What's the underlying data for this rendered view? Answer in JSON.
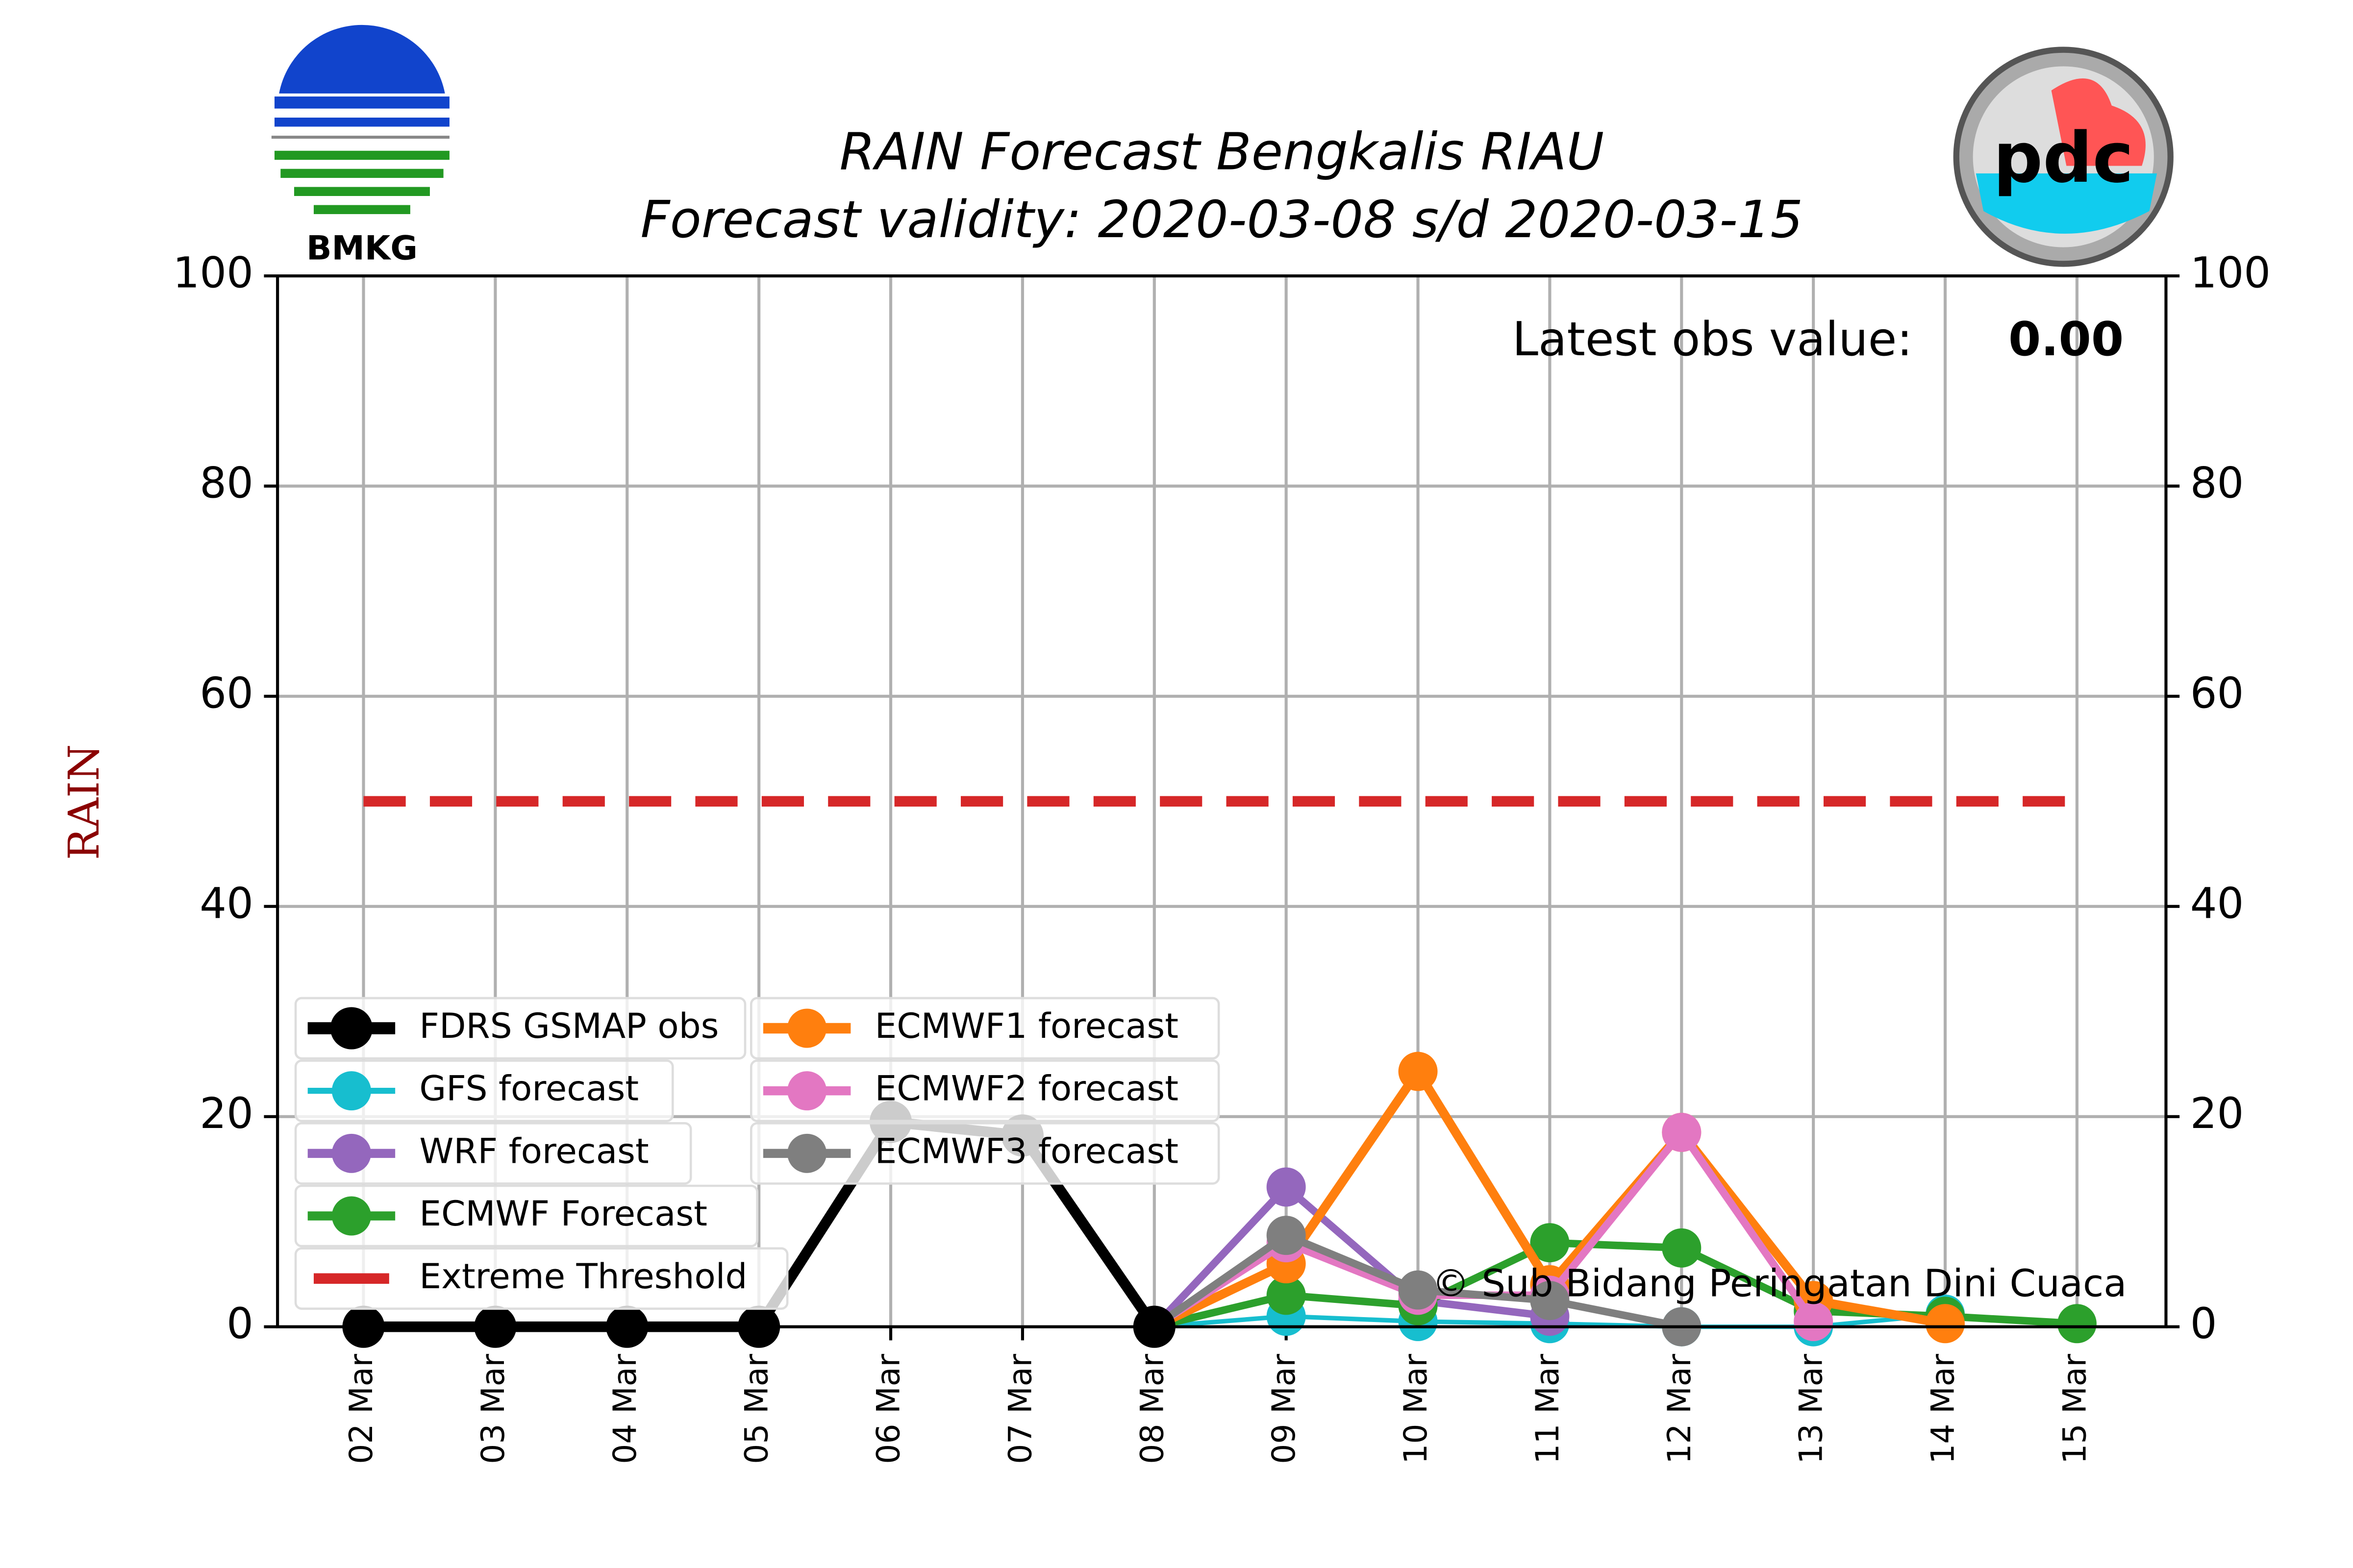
{
  "chart_data": {
    "type": "line",
    "title": "RAIN Forecast Bengkalis RIAU",
    "subtitle": "Forecast validity: 2020-03-08 s/d 2020-03-15",
    "y_label": "RAIN",
    "annotation": "Latest obs value:",
    "annotation_value": "0.00",
    "credit": "© Sub Bidang Peringatan Dini Cuaca",
    "logo_left": "BMKG",
    "categories": [
      "02 Mar",
      "03 Mar",
      "04 Mar",
      "05 Mar",
      "06 Mar",
      "07 Mar",
      "08 Mar",
      "09 Mar",
      "10 Mar",
      "11 Mar",
      "12 Mar",
      "13 Mar",
      "14 Mar",
      "15 Mar"
    ],
    "series": [
      {
        "name": "FDRS GSMAP obs",
        "color": "#000000",
        "values": [
          0,
          0,
          0,
          0,
          19.5,
          18.2,
          0,
          null,
          null,
          null,
          null,
          null,
          null,
          null
        ]
      },
      {
        "name": "GFS forecast",
        "color": "#17becf",
        "values": [
          null,
          null,
          null,
          null,
          null,
          null,
          0,
          1,
          0.5,
          0.3,
          0,
          0,
          1.2,
          null
        ]
      },
      {
        "name": "WRF forecast",
        "color": "#9467bd",
        "values": [
          null,
          null,
          null,
          null,
          null,
          null,
          0,
          13.3,
          2.5,
          1,
          null,
          null,
          null,
          null
        ]
      },
      {
        "name": "ECMWF Forecast",
        "color": "#2ca02c",
        "values": [
          null,
          null,
          null,
          null,
          null,
          null,
          0,
          3,
          2,
          8,
          7.5,
          1.5,
          1,
          0.3
        ]
      },
      {
        "name": "ECMWF1 forecast",
        "color": "#ff7f0e",
        "values": [
          null,
          null,
          null,
          null,
          null,
          null,
          0,
          6,
          24.3,
          4,
          18.5,
          2.5,
          0.3,
          null
        ]
      },
      {
        "name": "ECMWF2 forecast",
        "color": "#e377c2",
        "values": [
          null,
          null,
          null,
          null,
          null,
          null,
          0,
          8,
          3,
          3,
          18.5,
          0.5,
          null,
          null
        ]
      },
      {
        "name": "ECMWF3 forecast",
        "color": "#7f7f7f",
        "values": [
          null,
          null,
          null,
          null,
          null,
          null,
          0,
          8.7,
          3.5,
          2.5,
          0,
          null,
          null,
          null
        ]
      }
    ],
    "threshold": {
      "name": "Extreme Threshold",
      "value": 50,
      "color": "#d62728"
    },
    "ylim": [
      0,
      100
    ],
    "yticks": [
      0,
      20,
      40,
      60,
      80,
      100
    ],
    "y2lim": [
      0,
      100
    ],
    "y2ticks": [
      0,
      20,
      40,
      60,
      80,
      100
    ],
    "grid": true
  }
}
